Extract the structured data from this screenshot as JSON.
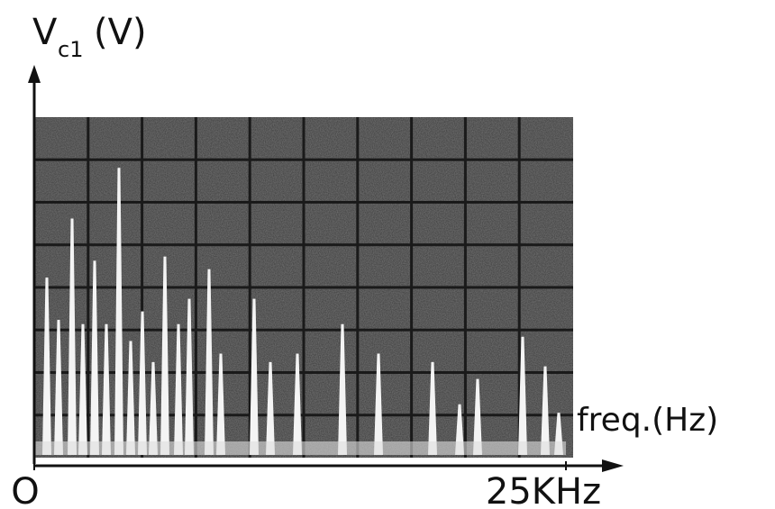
{
  "chart_data": {
    "type": "spectrum",
    "ylabel_main": "V",
    "ylabel_sub": "c1",
    "ylabel_unit": "(V)",
    "xlabel": "freq.(Hz)",
    "xlim": [
      0,
      25000
    ],
    "xticks": [
      {
        "value": 0,
        "label": "O"
      },
      {
        "value": 25000,
        "label": "25KHz"
      }
    ],
    "ylim": [
      0,
      8
    ],
    "grid": true,
    "color": "#f4f4f4",
    "x": [
      593,
      1144,
      1780,
      2288,
      2839,
      3390,
      3983,
      4534,
      5085,
      5593,
      6144,
      6780,
      7288,
      8220,
      8771,
      10339,
      11102,
      12373,
      14492,
      16186,
      18729,
      20000,
      20847,
      22966,
      24025,
      24661
    ],
    "values": [
      4.2,
      3.2,
      5.6,
      3.1,
      4.6,
      3.1,
      6.8,
      2.7,
      3.4,
      2.2,
      4.7,
      3.1,
      3.7,
      4.4,
      2.4,
      3.7,
      2.2,
      2.4,
      3.1,
      2.4,
      2.2,
      1.2,
      1.8,
      2.8,
      2.1,
      1.0
    ]
  }
}
